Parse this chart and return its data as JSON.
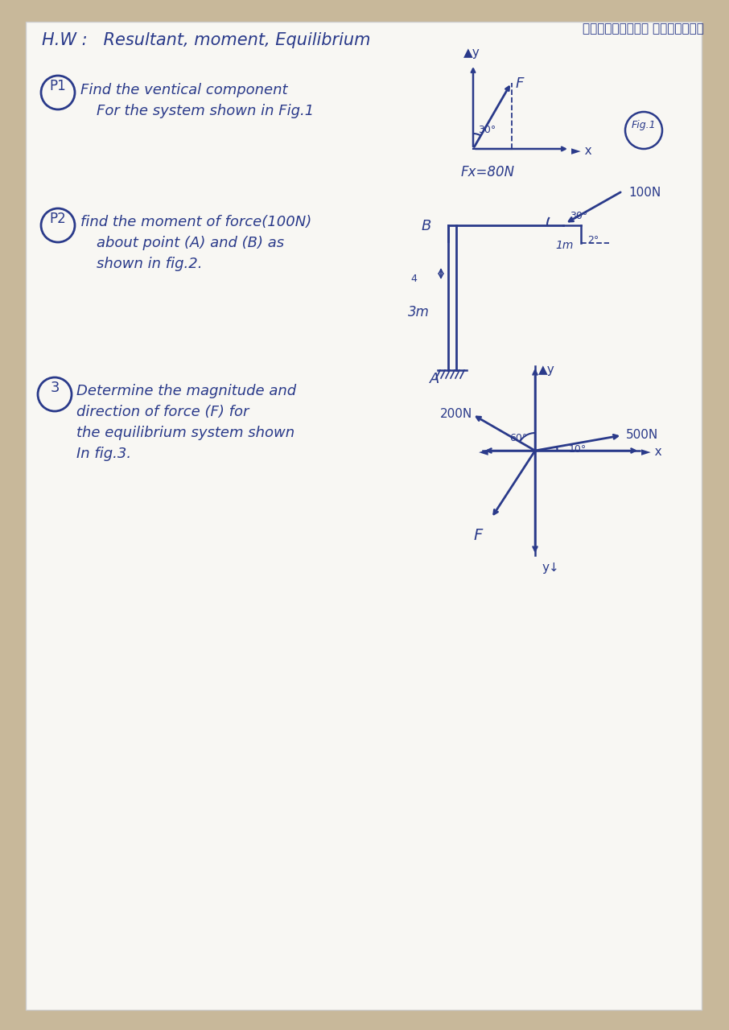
{
  "bg_color": "#c8b89a",
  "paper_color": "#f8f7f3",
  "ink_color": "#2a3a8a",
  "arabic_text": "الميكانيكالهندسي",
  "title": "H.W :   Resultant, moment, Equilibrium",
  "p1_circle": "P1",
  "p1_text1": "Find the ventical component",
  "p1_text2": "For the system shown in Fig.1",
  "p1_fx": "Fx=80N",
  "p1_angle": "30°",
  "p1_F": "F",
  "p1_Ay": "▲y",
  "p1_x": "► x",
  "p1_fig": "Fig.1",
  "p2_circle": "P2",
  "p2_text1": "find the moment of force(100N)",
  "p2_text2": "about point (A) and (B) as",
  "p2_text3": "shown in fig.2.",
  "p2_100N": "100N",
  "p2_30": "30°",
  "p2_20": "2°",
  "p2_1m": "1m",
  "p2_3m": "3m",
  "p2_A": "A",
  "p2_B": "B",
  "p3_circle": "3",
  "p3_text1": "Determine the magnitude and",
  "p3_text2": "direction of force (F) for",
  "p3_text3": "the equilibrium system shown",
  "p3_text4": "In fig.3.",
  "p3_200N": "200N",
  "p3_500N": "500N",
  "p3_60": "60°",
  "p3_10": "10°",
  "p3_Ay": "▲y",
  "p3_x": "► x",
  "p3_neg_x": "◄",
  "p3_neg_y": "y↓",
  "p3_F": "F"
}
